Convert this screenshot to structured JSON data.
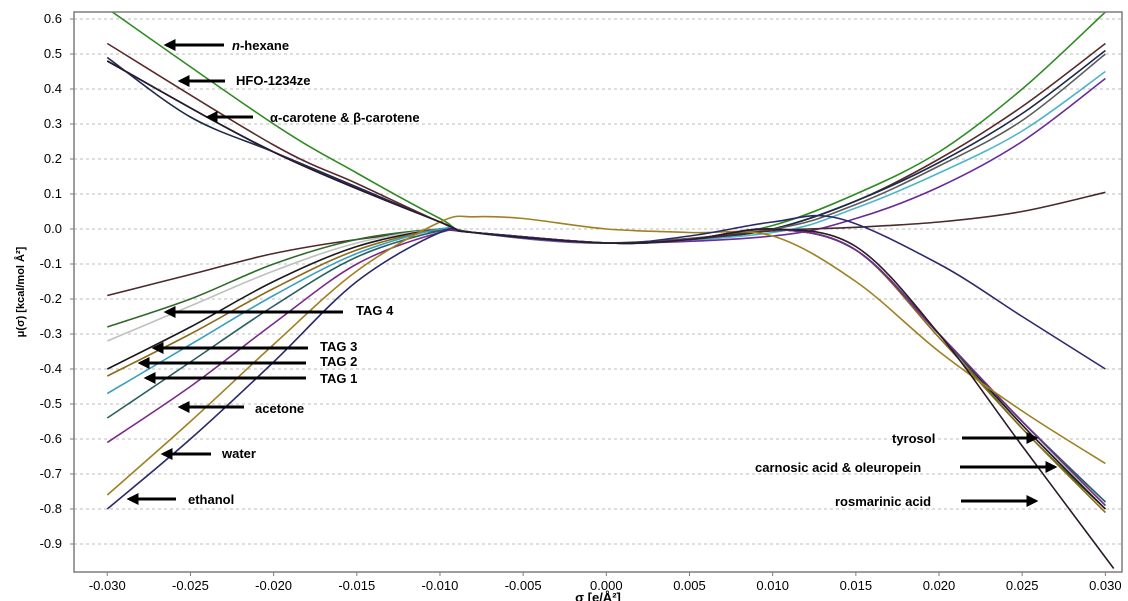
{
  "chart_data": {
    "type": "line",
    "xlabel": "σ [e/Å²]",
    "ylabel": "μ(σ) [kcal/mol Å²]",
    "xlim": [
      -0.032,
      0.031
    ],
    "ylim": [
      -0.98,
      0.62
    ],
    "x_ticks": [
      "-0.030",
      "-0.025",
      "-0.020",
      "-0.015",
      "-0.010",
      "-0.005",
      "0.000",
      "0.005",
      "0.010",
      "0.015",
      "0.020",
      "0.025",
      "0.030"
    ],
    "x_tick_values": [
      -0.03,
      -0.025,
      -0.02,
      -0.015,
      -0.01,
      -0.005,
      0,
      0.005,
      0.01,
      0.015,
      0.02,
      0.025,
      0.03
    ],
    "y_ticks": [
      "0.6",
      "0.5",
      "0.4",
      "0.3",
      "0.2",
      "0.1",
      "0.0",
      "-0.1",
      "-0.2",
      "-0.3",
      "-0.4",
      "-0.5",
      "-0.6",
      "-0.7",
      "-0.8",
      "-0.9"
    ],
    "y_tick_values": [
      0.6,
      0.5,
      0.4,
      0.3,
      0.2,
      0.1,
      0,
      -0.1,
      -0.2,
      -0.3,
      -0.4,
      -0.5,
      -0.6,
      -0.7,
      -0.8,
      -0.9
    ],
    "grid": true,
    "series": [
      {
        "color": "#2e8b22",
        "x": [
          -0.03,
          -0.02,
          -0.015,
          -0.01,
          -0.008,
          0,
          0.005,
          0.01,
          0.015,
          0.02,
          0.025,
          0.03
        ],
        "values": [
          0.63,
          0.3,
          0.16,
          0.03,
          -0.01,
          -0.04,
          -0.03,
          0.01,
          0.1,
          0.22,
          0.4,
          0.62
        ]
      },
      {
        "color": "#5a2a2a",
        "x": [
          -0.03,
          -0.02,
          -0.015,
          -0.01,
          -0.008,
          0,
          0.005,
          0.01,
          0.015,
          0.02,
          0.025,
          0.03
        ],
        "values": [
          0.53,
          0.24,
          0.13,
          0.02,
          -0.01,
          -0.04,
          -0.03,
          0.0,
          0.08,
          0.2,
          0.35,
          0.53
        ]
      },
      {
        "color": "#1a2a4a",
        "x": [
          -0.03,
          -0.025,
          -0.02,
          -0.015,
          -0.01,
          -0.008,
          0,
          0.005,
          0.01,
          0.015,
          0.02,
          0.025,
          0.03
        ],
        "values": [
          0.49,
          0.32,
          0.22,
          0.12,
          0.02,
          -0.01,
          -0.04,
          -0.03,
          0.0,
          0.08,
          0.19,
          0.33,
          0.51
        ]
      },
      {
        "color": "#5a5a5a",
        "x": [
          -0.03,
          -0.02,
          -0.01,
          -0.008,
          0,
          0.01,
          0.015,
          0.02,
          0.025,
          0.03
        ],
        "values": [
          0.48,
          0.22,
          0.02,
          -0.01,
          -0.04,
          0.0,
          0.07,
          0.18,
          0.31,
          0.5
        ]
      },
      {
        "color": "#4fb5c7",
        "x": [
          -0.03,
          -0.02,
          -0.01,
          -0.008,
          0,
          0.01,
          0.015,
          0.02,
          0.025,
          0.03
        ],
        "values": [
          0.48,
          0.22,
          0.02,
          -0.01,
          -0.04,
          -0.01,
          0.06,
          0.16,
          0.28,
          0.45
        ]
      },
      {
        "color": "#6a2a9a",
        "x": [
          -0.03,
          -0.02,
          -0.01,
          -0.008,
          0,
          0.01,
          0.015,
          0.02,
          0.025,
          0.03
        ],
        "values": [
          0.48,
          0.22,
          0.02,
          -0.01,
          -0.04,
          -0.02,
          0.03,
          0.12,
          0.25,
          0.43
        ]
      },
      {
        "color": "#4a2a2a",
        "x": [
          -0.03,
          -0.025,
          -0.02,
          -0.015,
          -0.01,
          -0.008,
          0,
          0.005,
          0.01,
          0.015,
          0.02,
          0.025,
          0.03
        ],
        "values": [
          -0.19,
          -0.13,
          -0.07,
          -0.03,
          -0.005,
          -0.01,
          -0.04,
          -0.03,
          -0.005,
          0.005,
          0.02,
          0.05,
          0.105
        ]
      },
      {
        "color": "#2e6a2a",
        "x": [
          -0.03,
          -0.025,
          -0.02,
          -0.015,
          -0.01,
          -0.008,
          0,
          0.005,
          0.01,
          0.015,
          0.02,
          0.025,
          0.03
        ],
        "values": [
          -0.28,
          -0.2,
          -0.1,
          -0.03,
          0.0,
          -0.01,
          -0.04,
          -0.03,
          0.0,
          -0.06,
          -0.3,
          -0.57,
          -0.8
        ]
      },
      {
        "color": "#c0c0c0",
        "x": [
          -0.03,
          -0.025,
          -0.02,
          -0.015,
          -0.01,
          -0.008,
          0,
          0.005,
          0.01,
          0.015,
          0.02,
          0.025,
          0.03
        ],
        "values": [
          -0.32,
          -0.22,
          -0.12,
          -0.04,
          0.0,
          -0.01,
          -0.04,
          -0.03,
          0.0,
          -0.06,
          -0.3,
          -0.56,
          -0.79
        ]
      },
      {
        "color": "#1a1a1a",
        "x": [
          -0.03,
          -0.025,
          -0.02,
          -0.015,
          -0.01,
          -0.008,
          0,
          0.005,
          0.01,
          0.015,
          0.02,
          0.025,
          0.03
        ],
        "values": [
          -0.4,
          -0.28,
          -0.15,
          -0.05,
          0.0,
          -0.01,
          -0.04,
          -0.03,
          0.0,
          -0.06,
          -0.3,
          -0.56,
          -0.8
        ]
      },
      {
        "color": "#8b6a1a",
        "x": [
          -0.03,
          -0.025,
          -0.02,
          -0.015,
          -0.01,
          -0.008,
          0,
          0.005,
          0.01,
          0.015,
          0.02,
          0.025,
          0.03
        ],
        "values": [
          -0.42,
          -0.3,
          -0.17,
          -0.06,
          0.0,
          -0.01,
          -0.04,
          -0.03,
          0.0,
          -0.06,
          -0.31,
          -0.57,
          -0.81
        ]
      },
      {
        "color": "#3aa0c0",
        "x": [
          -0.03,
          -0.025,
          -0.02,
          -0.015,
          -0.01,
          -0.008,
          0,
          0.005,
          0.01,
          0.015,
          0.02,
          0.025,
          0.03
        ],
        "values": [
          -0.47,
          -0.33,
          -0.19,
          -0.07,
          0.0,
          -0.01,
          -0.04,
          -0.03,
          0.0,
          -0.06,
          -0.3,
          -0.55,
          -0.78
        ]
      },
      {
        "color": "#2a6060",
        "x": [
          -0.03,
          -0.025,
          -0.02,
          -0.015,
          -0.01,
          -0.008,
          0,
          0.005,
          0.01,
          0.015,
          0.02,
          0.025,
          0.03
        ],
        "values": [
          -0.54,
          -0.38,
          -0.22,
          -0.08,
          -0.005,
          -0.01,
          -0.04,
          -0.03,
          0.0,
          -0.06,
          -0.3,
          -0.55,
          -0.78
        ]
      },
      {
        "color": "#7a2a8a",
        "x": [
          -0.03,
          -0.025,
          -0.02,
          -0.015,
          -0.01,
          -0.008,
          0,
          0.005,
          0.01,
          0.015,
          0.02,
          0.025,
          0.03
        ],
        "values": [
          -0.61,
          -0.45,
          -0.27,
          -0.1,
          -0.01,
          -0.01,
          -0.04,
          -0.03,
          0.0,
          -0.06,
          -0.3,
          -0.55,
          -0.79
        ]
      },
      {
        "color": "#a08020",
        "x": [
          -0.03,
          -0.025,
          -0.02,
          -0.015,
          -0.01,
          -0.008,
          -0.005,
          0,
          0.005,
          0.01,
          0.015,
          0.02,
          0.025,
          0.03
        ],
        "values": [
          -0.76,
          -0.55,
          -0.33,
          -0.12,
          0.02,
          0.035,
          0.03,
          0.0,
          -0.01,
          -0.02,
          -0.15,
          -0.35,
          -0.52,
          -0.67
        ]
      },
      {
        "color": "#2a2a6a",
        "x": [
          -0.03,
          -0.025,
          -0.02,
          -0.015,
          -0.01,
          -0.008,
          0,
          0.005,
          0.01,
          0.014,
          0.02,
          0.025,
          0.03
        ],
        "values": [
          -0.8,
          -0.6,
          -0.38,
          -0.15,
          -0.01,
          -0.01,
          -0.04,
          -0.02,
          0.02,
          0.03,
          -0.1,
          -0.25,
          -0.4
        ]
      },
      {
        "color": "#2a1a2a",
        "x": [
          -0.03,
          -0.02,
          -0.01,
          -0.008,
          0,
          0.005,
          0.01,
          0.015,
          0.02,
          0.025,
          0.0305
        ],
        "values": [
          0.48,
          0.22,
          0.02,
          -0.01,
          -0.04,
          -0.03,
          0.0,
          -0.05,
          -0.3,
          -0.62,
          -0.97
        ]
      }
    ],
    "annotations": [
      {
        "text": "n-hexane",
        "italic_prefix": "n",
        "rest": "-hexane",
        "x": -0.023,
        "y": 0.52
      },
      {
        "text": "HFO-1234ze",
        "x": -0.023,
        "y": 0.42
      },
      {
        "text": "α-carotene & β-carotene",
        "x": -0.019,
        "y": 0.31
      },
      {
        "text": "TAG 4",
        "x": -0.015,
        "y": -0.25
      },
      {
        "text": "TAG 3",
        "x": -0.017,
        "y": -0.34
      },
      {
        "text": "TAG 2",
        "x": -0.017,
        "y": -0.38
      },
      {
        "text": "TAG 1",
        "x": -0.017,
        "y": -0.43
      },
      {
        "text": "acetone",
        "x": -0.021,
        "y": -0.53
      },
      {
        "text": "water",
        "x": -0.024,
        "y": -0.66
      },
      {
        "text": "ethanol",
        "x": -0.026,
        "y": -0.79
      },
      {
        "text": "tyrosol",
        "x": 0.0178,
        "y": -0.61
      },
      {
        "text": "carnosic acid & oleuropein",
        "x": 0.0125,
        "y": -0.7
      },
      {
        "text": "rosmarinic acid",
        "x": 0.0153,
        "y": -0.8
      }
    ]
  }
}
